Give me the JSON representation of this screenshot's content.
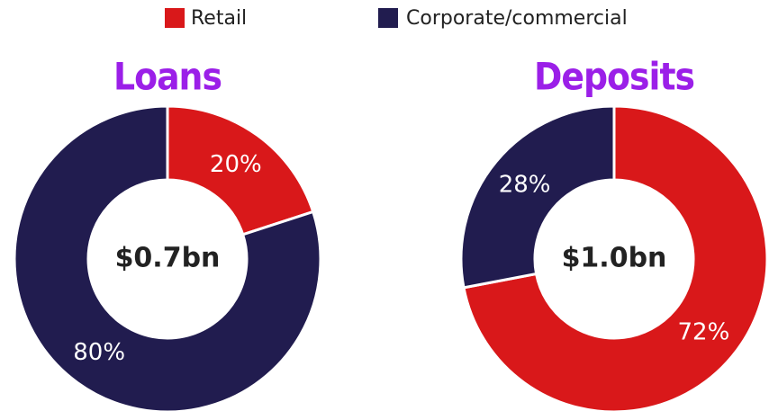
{
  "chart_data": [
    {
      "type": "pie",
      "donut": true,
      "title": "Loans",
      "center_label": "$0.7bn",
      "categories": [
        "Retail",
        "Corporate/commercial"
      ],
      "values": [
        20,
        80
      ],
      "value_labels": [
        "20%",
        "80%"
      ],
      "colors": [
        "#d9181a",
        "#211c4f"
      ]
    },
    {
      "type": "pie",
      "donut": true,
      "title": "Deposits",
      "center_label": "$1.0bn",
      "categories": [
        "Retail",
        "Corporate/commercial"
      ],
      "values": [
        72,
        28
      ],
      "value_labels": [
        "72%",
        "28%"
      ],
      "colors": [
        "#d9181a",
        "#211c4f"
      ]
    }
  ]
}
